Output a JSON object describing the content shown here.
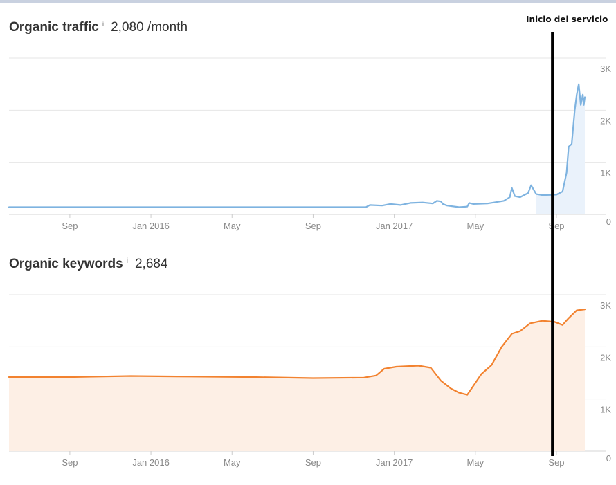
{
  "annotation": {
    "label": "Inicio del servicio",
    "date_index": 26.8
  },
  "colors": {
    "traffic_line": "#7eb3e0",
    "traffic_fill": "#eaf2fb",
    "keywords_line": "#f2822f",
    "keywords_fill": "#fdefe5",
    "grid": "#e6e6e6",
    "marker": "#000000"
  },
  "chart_data": [
    {
      "type": "area",
      "title": "Organic traffic",
      "info_icon": "i",
      "summary_value": "2,080 /month",
      "x_unit": "months since start (Jun 2015 = 0)",
      "x_ticks": [
        {
          "label": "Sep",
          "x": 3
        },
        {
          "label": "Jan 2016",
          "x": 7
        },
        {
          "label": "May",
          "x": 11
        },
        {
          "label": "Sep",
          "x": 15
        },
        {
          "label": "Jan 2017",
          "x": 19
        },
        {
          "label": "May",
          "x": 23
        },
        {
          "label": "Sep",
          "x": 27
        }
      ],
      "y_ticks": [
        {
          "label": "3K",
          "value": 3000
        },
        {
          "label": "2K",
          "value": 2000
        },
        {
          "label": "1K",
          "value": 1000
        },
        {
          "label": "0",
          "value": 0
        }
      ],
      "xlim": [
        0,
        28.4
      ],
      "ylim": [
        0,
        3000
      ],
      "series": [
        {
          "name": "Organic traffic",
          "x": [
            0,
            17.6,
            17.8,
            18.4,
            18.8,
            19.3,
            19.8,
            20.4,
            20.9,
            21.1,
            21.3,
            21.4,
            21.6,
            22.2,
            22.6,
            22.7,
            22.9,
            23.6,
            24.4,
            24.7,
            24.8,
            24.95,
            25.2,
            25.4,
            25.6,
            25.75,
            26.0,
            26.3,
            27.0,
            27.3,
            27.5,
            27.6,
            27.75,
            27.9,
            28.0,
            28.1,
            28.2,
            28.3,
            28.35,
            28.4
          ],
          "y": [
            140,
            140,
            180,
            170,
            200,
            180,
            220,
            230,
            210,
            260,
            250,
            200,
            170,
            140,
            150,
            220,
            200,
            210,
            260,
            330,
            510,
            350,
            330,
            370,
            410,
            560,
            390,
            370,
            380,
            440,
            800,
            1300,
            1350,
            2000,
            2300,
            2500,
            2100,
            2300,
            2100,
            2250
          ]
        }
      ]
    },
    {
      "type": "area",
      "title": "Organic keywords",
      "info_icon": "i",
      "summary_value": "2,684",
      "x_unit": "months since start (Jun 2015 = 0)",
      "x_ticks": [
        {
          "label": "Sep",
          "x": 3
        },
        {
          "label": "Jan 2016",
          "x": 7
        },
        {
          "label": "May",
          "x": 11
        },
        {
          "label": "Sep",
          "x": 15
        },
        {
          "label": "Jan 2017",
          "x": 19
        },
        {
          "label": "May",
          "x": 23
        },
        {
          "label": "Sep",
          "x": 27
        }
      ],
      "y_ticks": [
        {
          "label": "3K",
          "value": 3000
        },
        {
          "label": "2K",
          "value": 2000
        },
        {
          "label": "1K",
          "value": 1000
        },
        {
          "label": "0",
          "value": 0
        }
      ],
      "xlim": [
        0,
        28.4
      ],
      "ylim": [
        0,
        3000
      ],
      "series": [
        {
          "name": "Organic keywords",
          "x": [
            0,
            3,
            6,
            9,
            12,
            15,
            17.5,
            18.1,
            18.5,
            19.1,
            20.2,
            20.8,
            21.3,
            21.8,
            22.2,
            22.6,
            22.9,
            23.3,
            23.8,
            24.3,
            24.8,
            25.2,
            25.7,
            26.3,
            26.9,
            27.3,
            27.6,
            28.0,
            28.4
          ],
          "y": [
            1420,
            1420,
            1440,
            1430,
            1420,
            1400,
            1410,
            1450,
            1580,
            1620,
            1640,
            1600,
            1350,
            1200,
            1120,
            1080,
            1250,
            1480,
            1650,
            2000,
            2250,
            2300,
            2450,
            2500,
            2480,
            2420,
            2550,
            2700,
            2720
          ]
        }
      ]
    }
  ]
}
